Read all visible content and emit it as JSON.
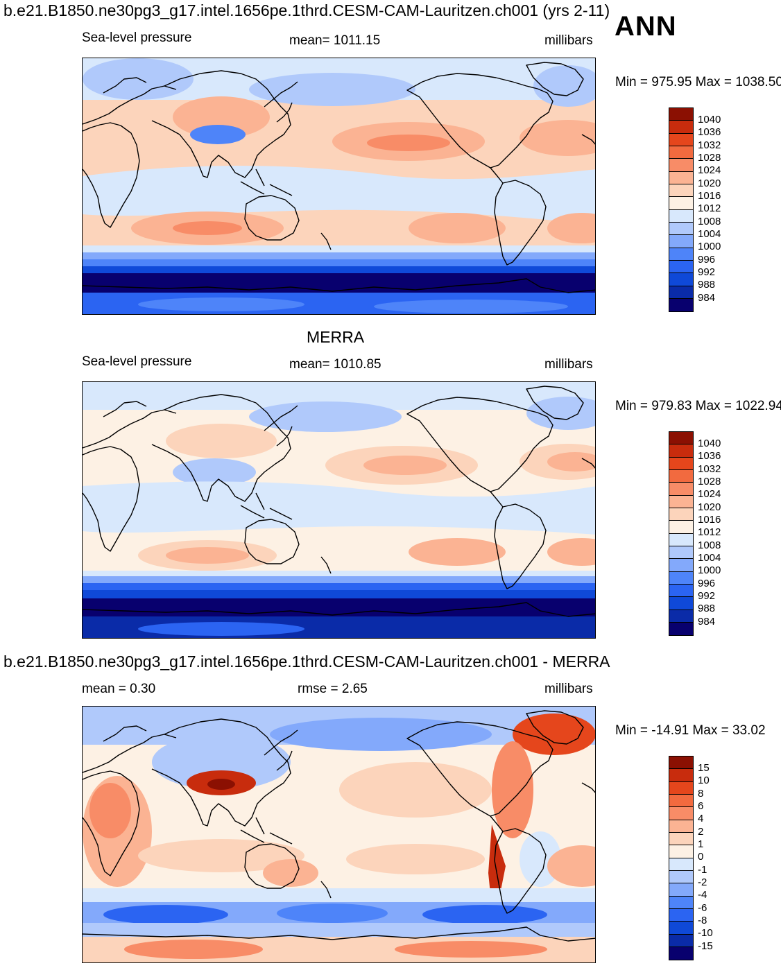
{
  "colors": {
    "levels": [
      "#08006e",
      "#0a2ba8",
      "#0f49d8",
      "#2b64f2",
      "#4e84f9",
      "#83a9fb",
      "#b0c9fb",
      "#d8e8fc",
      "#fdf1e4",
      "#fcd4bb",
      "#fbb393",
      "#f88c67",
      "#f26a3f",
      "#e5461c",
      "#c82c0d",
      "#8b1002"
    ]
  },
  "header": {
    "case_title": "b.e21.B1850.ne30pg3_g17.intel.1656pe.1thrd.CESM-CAM-Lauritzen.ch001 (yrs 2-11)",
    "season": "ANN"
  },
  "panels": [
    {
      "id": "model",
      "heading": "",
      "left_label": "Sea-level pressure",
      "center_label": "mean= 1011.15",
      "right_label": "millibars",
      "minmax": "Min = 975.95 Max = 1038.50",
      "levels": [
        "1040",
        "1036",
        "1032",
        "1028",
        "1024",
        "1020",
        "1016",
        "1012",
        "1008",
        "1004",
        "1000",
        "996",
        "992",
        "988",
        "984"
      ]
    },
    {
      "id": "obs",
      "heading": "MERRA",
      "left_label": "Sea-level pressure",
      "center_label": "mean= 1010.85",
      "right_label": "millibars",
      "minmax": "Min = 979.83 Max = 1022.94",
      "levels": [
        "1040",
        "1036",
        "1032",
        "1028",
        "1024",
        "1020",
        "1016",
        "1012",
        "1008",
        "1004",
        "1000",
        "996",
        "992",
        "988",
        "984"
      ]
    },
    {
      "id": "diff",
      "heading": "b.e21.B1850.ne30pg3_g17.intel.1656pe.1thrd.CESM-CAM-Lauritzen.ch001 - MERRA",
      "left_label": "mean =   0.30",
      "center_label": "rmse =   2.65",
      "right_label": "millibars",
      "minmax": "Min = -14.91 Max =  33.02",
      "levels": [
        "15",
        "10",
        "8",
        "6",
        "4",
        "2",
        "1",
        "0",
        "-1",
        "-2",
        "-4",
        "-6",
        "-8",
        "-10",
        "-15"
      ]
    }
  ]
}
